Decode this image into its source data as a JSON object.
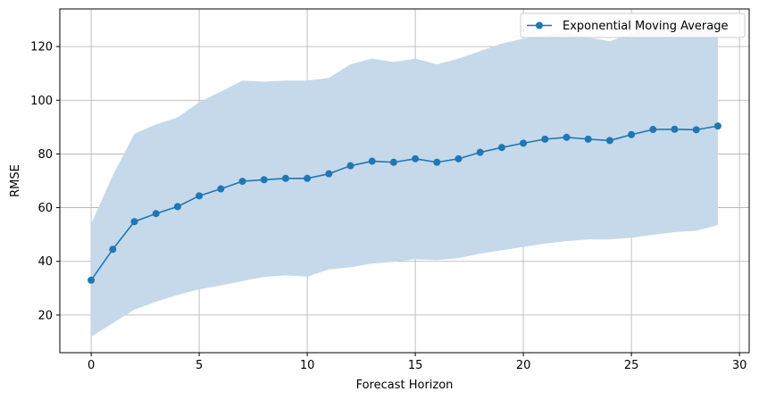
{
  "chart_data": {
    "type": "line",
    "title": "",
    "xlabel": "Forecast Horizon",
    "ylabel": "RMSE",
    "xlim": [
      -1.45,
      30.45
    ],
    "ylim": [
      6,
      134
    ],
    "xticks": [
      0,
      5,
      10,
      15,
      20,
      25,
      30
    ],
    "yticks": [
      20,
      40,
      60,
      80,
      100,
      120
    ],
    "grid": true,
    "legend_position": "top-right",
    "series": [
      {
        "name": "Exponential Moving Average",
        "color": "#1f77b4",
        "marker": "circle",
        "x": [
          0,
          1,
          2,
          3,
          4,
          5,
          6,
          7,
          8,
          9,
          10,
          11,
          12,
          13,
          14,
          15,
          16,
          17,
          18,
          19,
          20,
          21,
          22,
          23,
          24,
          25,
          26,
          27,
          28,
          29
        ],
        "y": [
          33.0,
          44.5,
          54.8,
          57.8,
          60.4,
          64.4,
          67.0,
          69.8,
          70.4,
          70.9,
          70.9,
          72.6,
          75.6,
          77.3,
          76.9,
          78.2,
          76.9,
          78.2,
          80.6,
          82.4,
          84.0,
          85.5,
          86.2,
          85.5,
          85.0,
          87.2,
          89.1,
          89.2,
          89.0,
          90.4
        ],
        "band_upper": [
          54.0,
          72.0,
          87.5,
          91.0,
          93.6,
          99.3,
          103.2,
          107.3,
          106.9,
          107.3,
          107.3,
          108.3,
          113.4,
          115.5,
          114.2,
          115.5,
          113.4,
          115.5,
          118.3,
          121.1,
          122.9,
          124.2,
          125.4,
          123.3,
          122.0,
          124.8,
          126.8,
          127.5,
          127.0,
          127.0
        ],
        "band_lower": [
          12.0,
          17.0,
          22.0,
          25.0,
          27.5,
          29.6,
          31.0,
          32.7,
          34.2,
          34.8,
          34.3,
          37.0,
          37.8,
          39.2,
          39.8,
          40.8,
          40.5,
          41.2,
          42.9,
          44.1,
          45.4,
          46.6,
          47.5,
          48.2,
          48.2,
          48.8,
          49.9,
          50.9,
          51.4,
          53.5
        ],
        "band_color": "#c5d9ea"
      }
    ]
  }
}
